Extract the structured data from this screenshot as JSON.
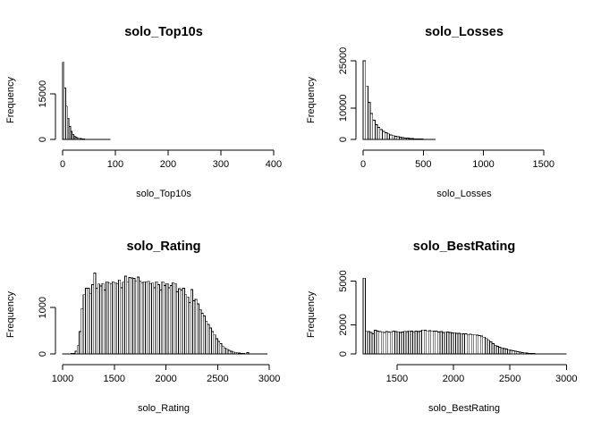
{
  "chart_data": [
    {
      "type": "bar",
      "title": "solo_Top10s",
      "xlabel": "solo_Top10s",
      "ylabel": "Frequency",
      "x_ticks": [
        0,
        100,
        200,
        300,
        400
      ],
      "y_ticks": [
        0,
        15000
      ],
      "xlim": [
        0,
        390
      ],
      "ylim": [
        0,
        26000
      ],
      "bin_width": 3,
      "bin_start": 0,
      "values": [
        25500,
        17000,
        11000,
        7000,
        4300,
        2700,
        1700,
        1100,
        750,
        500,
        350,
        250,
        180,
        130,
        100,
        80,
        60,
        50,
        40,
        30,
        25,
        20,
        15,
        12,
        10,
        8,
        6,
        5,
        4,
        3
      ]
    },
    {
      "type": "bar",
      "title": "solo_Losses",
      "xlabel": "solo_Losses",
      "ylabel": "Frequency",
      "x_ticks": [
        0,
        500,
        1000,
        1500
      ],
      "y_ticks": [
        0,
        10000,
        25000
      ],
      "xlim": [
        0,
        1680
      ],
      "ylim": [
        0,
        25000
      ],
      "bin_width": 20,
      "bin_start": 0,
      "values": [
        25000,
        17000,
        11800,
        8200,
        6100,
        4700,
        3800,
        3100,
        2550,
        2100,
        1750,
        1450,
        1200,
        1000,
        830,
        690,
        570,
        470,
        390,
        320,
        260,
        210,
        170,
        140,
        110,
        90,
        70,
        55,
        45,
        35
      ]
    },
    {
      "type": "bar",
      "title": "solo_Rating",
      "xlabel": "solo_Rating",
      "ylabel": "Frequency",
      "x_ticks": [
        1000,
        1500,
        2000,
        2500,
        3000
      ],
      "y_ticks": [
        0,
        1000
      ],
      "xlim": [
        1000,
        2990
      ],
      "ylim": [
        0,
        1700
      ],
      "bin_width": 20,
      "bin_start": 1000,
      "values": [
        5,
        5,
        5,
        5,
        8,
        15,
        60,
        180,
        480,
        980,
        1280,
        1420,
        1420,
        1310,
        1500,
        1750,
        1420,
        1510,
        1470,
        1520,
        1380,
        1560,
        1530,
        1520,
        1560,
        1540,
        1520,
        1600,
        1430,
        1550,
        1680,
        1560,
        1650,
        1640,
        1630,
        1570,
        1660,
        1580,
        1530,
        1560,
        1560,
        1570,
        1520,
        1530,
        1430,
        1560,
        1500,
        1380,
        1560,
        1480,
        1520,
        1430,
        1480,
        1540,
        1520,
        1340,
        1410,
        1380,
        1420,
        1280,
        1230,
        1110,
        1390,
        1150,
        1180,
        1080,
        960,
        880,
        820,
        710,
        640,
        560,
        480,
        410,
        330,
        270,
        220,
        170,
        130,
        100,
        80,
        60,
        45,
        35,
        25,
        18,
        12,
        8,
        5,
        30,
        4,
        3,
        2,
        2,
        1,
        1,
        1,
        1,
        1
      ]
    },
    {
      "type": "bar",
      "title": "solo_BestRating",
      "xlabel": "solo_BestRating",
      "ylabel": "Frequency",
      "x_ticks": [
        1500,
        2000,
        2500,
        3000
      ],
      "y_ticks": [
        0,
        2000,
        5000
      ],
      "xlim": [
        1200,
        2990
      ],
      "ylim": [
        0,
        5400
      ],
      "bin_width": 20,
      "bin_start": 1200,
      "values": [
        5200,
        1550,
        1530,
        1470,
        1390,
        1620,
        1570,
        1540,
        1520,
        1480,
        1530,
        1510,
        1490,
        1560,
        1540,
        1520,
        1480,
        1510,
        1550,
        1530,
        1580,
        1560,
        1520,
        1570,
        1540,
        1560,
        1640,
        1620,
        1580,
        1600,
        1550,
        1570,
        1560,
        1510,
        1530,
        1480,
        1490,
        1500,
        1470,
        1440,
        1460,
        1420,
        1410,
        1400,
        1380,
        1390,
        1340,
        1350,
        1330,
        1300,
        1280,
        1260,
        1220,
        1150,
        1060,
        940,
        820,
        700,
        600,
        520,
        460,
        410,
        370,
        330,
        290,
        250,
        210,
        180,
        150,
        120,
        100,
        80,
        60,
        45,
        35,
        25,
        18,
        12,
        8,
        5,
        3,
        2,
        1,
        1,
        1,
        1,
        1,
        1,
        1,
        1
      ]
    }
  ]
}
